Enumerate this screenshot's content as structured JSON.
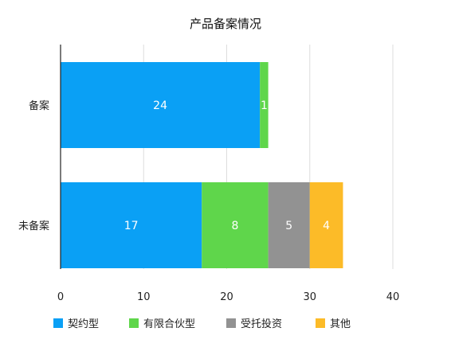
{
  "chart_data": {
    "type": "bar",
    "orientation": "horizontal",
    "stacked": true,
    "title": "产品备案情况",
    "categories": [
      "备案",
      "未备案"
    ],
    "series": [
      {
        "name": "契约型",
        "color": "#0aa0f5",
        "values": [
          24,
          17
        ]
      },
      {
        "name": "有限合伙型",
        "color": "#5fd64b",
        "values": [
          1,
          8
        ]
      },
      {
        "name": "受托投资",
        "color": "#929292",
        "values": [
          0,
          5
        ]
      },
      {
        "name": "其他",
        "color": "#fcbb28",
        "values": [
          0,
          4
        ]
      }
    ],
    "xlim": [
      0,
      40
    ],
    "xticks": [
      0,
      10,
      20,
      30,
      40
    ],
    "grid": true,
    "data_labels": true,
    "legend": "bottom-left"
  }
}
